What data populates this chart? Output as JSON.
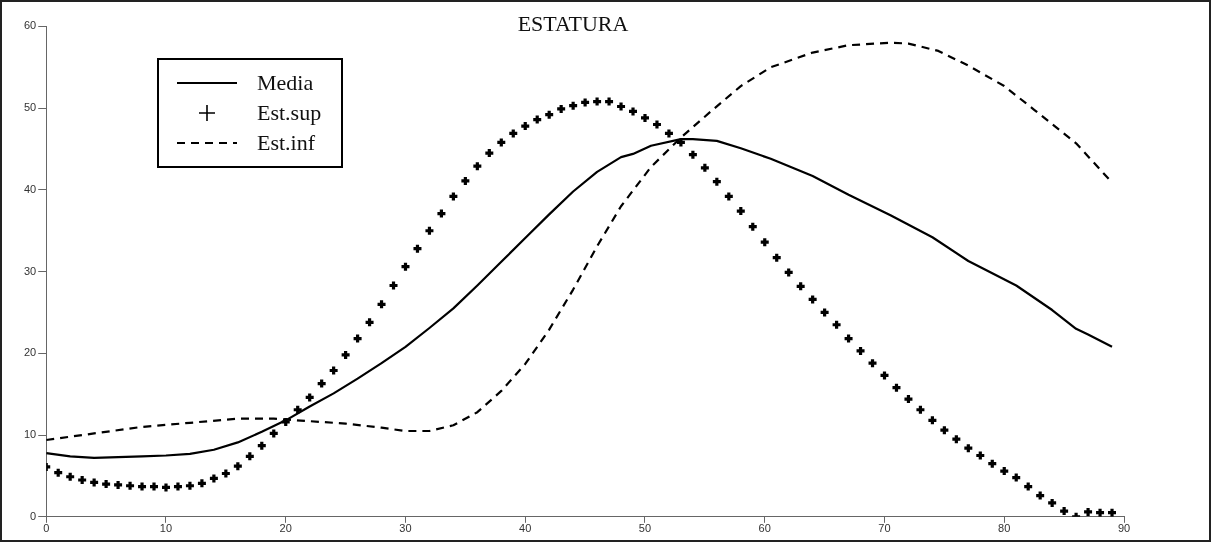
{
  "chart_data": {
    "type": "line",
    "title": "ESTATURA",
    "xlim": [
      0,
      90
    ],
    "xticks": [
      0,
      10,
      20,
      30,
      40,
      50,
      60,
      70,
      80,
      90
    ],
    "ylim": [
      0,
      60
    ],
    "yticks": [
      0,
      10,
      20,
      30,
      40,
      50,
      60
    ],
    "grid": false,
    "legend": "top left",
    "series": [
      {
        "name": "Media",
        "type": "line",
        "color": "#000000",
        "marker": "none",
        "line_style": "solid",
        "x": [
          0,
          2,
          4,
          6,
          8,
          10,
          12,
          14,
          16,
          18,
          20,
          22,
          24,
          26,
          28,
          30,
          32,
          34,
          36,
          38,
          40,
          42,
          44,
          46,
          48,
          49,
          50.5,
          53,
          54,
          56,
          58,
          60.5,
          64,
          67,
          70.5,
          74,
          77,
          81,
          84,
          86,
          87,
          89
        ],
        "values": [
          7.8,
          7.4,
          7.2,
          7.3,
          7.4,
          7.5,
          7.7,
          8.2,
          9.1,
          10.4,
          11.8,
          13.5,
          15.1,
          16.9,
          18.8,
          20.8,
          23.1,
          25.5,
          28.3,
          31.2,
          34.1,
          37.0,
          39.8,
          42.2,
          44.0,
          44.4,
          45.4,
          46.2,
          46.2,
          46.0,
          45.1,
          43.8,
          41.7,
          39.4,
          36.9,
          34.2,
          31.3,
          28.3,
          25.3,
          23.0,
          22.3,
          20.8
        ]
      },
      {
        "name": "Est.sup",
        "type": "scatter",
        "color": "#000000",
        "marker": "cross",
        "x": [
          0,
          1,
          2,
          3,
          4,
          5,
          6,
          7,
          8,
          9,
          10,
          11,
          12,
          13,
          14,
          15,
          16,
          17,
          18,
          19,
          20,
          21,
          22,
          23,
          24,
          25,
          26,
          27,
          28,
          29,
          30,
          31,
          32,
          33,
          34,
          35,
          36,
          37,
          38,
          39,
          40,
          41,
          42,
          43,
          44,
          45,
          46,
          47,
          48,
          49,
          50,
          51,
          52,
          53,
          54,
          55,
          56,
          57,
          58,
          59,
          60,
          61,
          62,
          63,
          64,
          65,
          66,
          67,
          68,
          69,
          70,
          71,
          72,
          73,
          74,
          75,
          76,
          77,
          78,
          79,
          80,
          81,
          82,
          83,
          84,
          85,
          86,
          87,
          88,
          89
        ],
        "values": [
          6.1,
          5.4,
          4.9,
          4.5,
          4.2,
          4.0,
          3.9,
          3.8,
          3.7,
          3.7,
          3.6,
          3.7,
          3.8,
          4.1,
          4.7,
          5.3,
          6.2,
          7.4,
          8.7,
          10.2,
          11.6,
          13.1,
          14.6,
          16.3,
          17.9,
          19.8,
          21.8,
          23.8,
          26.0,
          28.3,
          30.6,
          32.8,
          35.0,
          37.1,
          39.2,
          41.1,
          42.9,
          44.5,
          45.8,
          46.9,
          47.8,
          48.6,
          49.2,
          49.9,
          50.3,
          50.7,
          50.8,
          50.8,
          50.2,
          49.6,
          48.8,
          48.0,
          46.9,
          45.8,
          44.3,
          42.7,
          41.0,
          39.2,
          37.4,
          35.5,
          33.6,
          31.7,
          29.9,
          28.2,
          26.6,
          25.0,
          23.5,
          21.8,
          20.3,
          18.8,
          17.3,
          15.8,
          14.4,
          13.1,
          11.8,
          10.6,
          9.5,
          8.4,
          7.5,
          6.5,
          5.6,
          4.8,
          3.7,
          2.6,
          1.7,
          0.7,
          0.0,
          0.6,
          0.5,
          0.5
        ]
      },
      {
        "name": "Est.inf",
        "type": "line",
        "color": "#000000",
        "marker": "none",
        "line_style": "dashed",
        "x": [
          0,
          4,
          8,
          12,
          16,
          19,
          22,
          25,
          28,
          30,
          32,
          34,
          36,
          38,
          40,
          42,
          44,
          46,
          48,
          50.5,
          53,
          55.5,
          58,
          60.5,
          64,
          67,
          70.5,
          72,
          74.5,
          77,
          80,
          82.5,
          86,
          89
        ],
        "values": [
          9.4,
          10.2,
          11.0,
          11.5,
          12.0,
          12.0,
          11.7,
          11.4,
          10.9,
          10.5,
          10.5,
          11.2,
          12.8,
          15.4,
          18.7,
          22.9,
          27.8,
          33.1,
          38.0,
          42.8,
          46.4,
          49.6,
          52.7,
          55.0,
          56.8,
          57.7,
          58.0,
          57.9,
          57.0,
          55.2,
          52.7,
          49.8,
          45.7,
          40.9
        ]
      }
    ]
  }
}
